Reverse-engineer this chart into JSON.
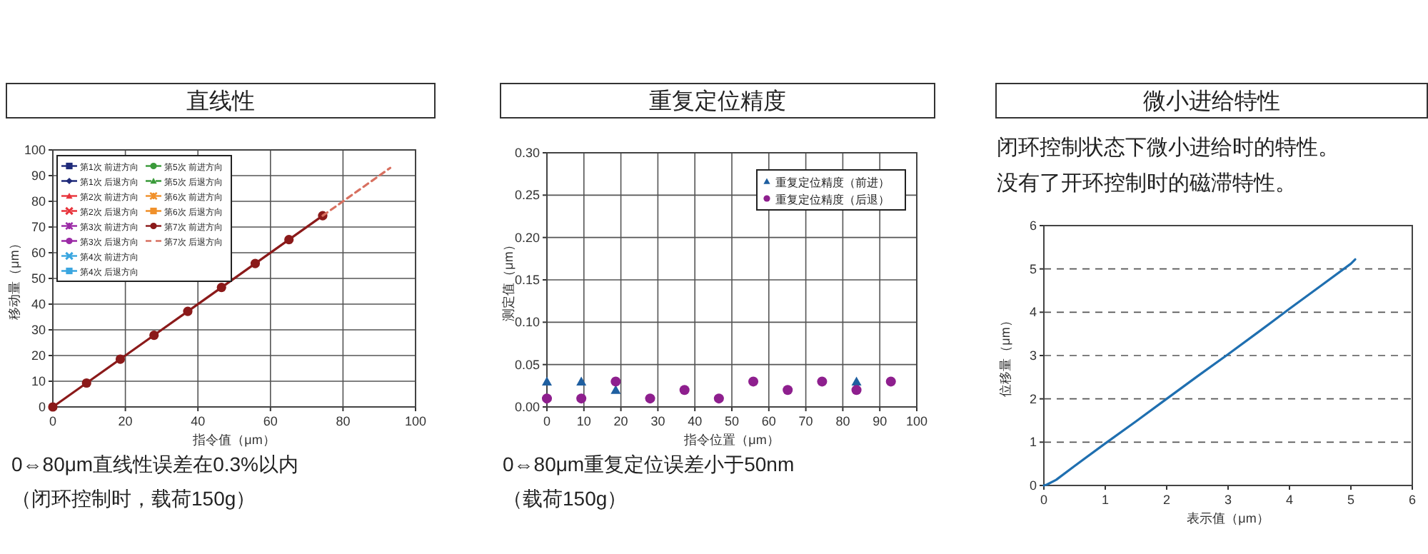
{
  "chart_data": [
    {
      "type": "line",
      "title": "直线性",
      "xlabel": "指令值（μm）",
      "ylabel": "移动量（μm）",
      "xlim": [
        0,
        100
      ],
      "ylim": [
        0,
        100
      ],
      "xticks": [
        0,
        20,
        40,
        60,
        80,
        100
      ],
      "yticks": [
        0,
        10,
        20,
        30,
        40,
        50,
        60,
        70,
        80,
        90,
        100
      ],
      "grid": true,
      "legend": "top left",
      "series": [
        {
          "name": "第1次 前进方向",
          "color": "#1f2a7a",
          "marker": "square",
          "line_style": "solid"
        },
        {
          "name": "第1次 后退方向",
          "color": "#1f2a7a",
          "marker": "diamond",
          "line_style": "dashed"
        },
        {
          "name": "第2次 前进方向",
          "color": "#e8343c",
          "marker": "triangle",
          "line_style": "solid"
        },
        {
          "name": "第2次 后退方向",
          "color": "#e8343c",
          "marker": "cross",
          "line_style": "dashed"
        },
        {
          "name": "第3次 前进方向",
          "color": "#9b2aa6",
          "marker": "star",
          "line_style": "solid"
        },
        {
          "name": "第3次 后退方向",
          "color": "#9b2aa6",
          "marker": "circle",
          "line_style": "dashed"
        },
        {
          "name": "第4次 前进方向",
          "color": "#3aa6e0",
          "marker": "cross",
          "line_style": "solid"
        },
        {
          "name": "第4次 后退方向",
          "color": "#3aa6e0",
          "marker": "square",
          "line_style": "dashed"
        },
        {
          "name": "第5次 前进方向",
          "color": "#3a9a3a",
          "marker": "circle",
          "line_style": "solid"
        },
        {
          "name": "第5次 后退方向",
          "color": "#3a9a3a",
          "marker": "triangle",
          "line_style": "dashed"
        },
        {
          "name": "第6次 前进方向",
          "color": "#f0902a",
          "marker": "star",
          "line_style": "solid"
        },
        {
          "name": "第6次 后退方向",
          "color": "#f0902a",
          "marker": "square",
          "line_style": "dashed"
        },
        {
          "name": "第7次 前进方向",
          "color": "#8b1a1a",
          "marker": "circle",
          "line_style": "solid",
          "x": [
            0,
            9.3,
            18.6,
            27.9,
            37.2,
            46.5,
            55.8,
            65.1,
            74.4
          ],
          "values": [
            0,
            9.3,
            18.6,
            27.9,
            37.2,
            46.5,
            55.8,
            65.1,
            74.4
          ]
        },
        {
          "name": "第7次 后退方向",
          "color": "#d87060",
          "marker": "none",
          "line_style": "dashed",
          "x": [
            74.4,
            80,
            93
          ],
          "values": [
            74.4,
            80,
            93
          ]
        }
      ],
      "annotations": [
        "0⇔80μm直线性误差在0.3%以内",
        "（闭环控制时，载荷150g）"
      ]
    },
    {
      "type": "scatter",
      "title": "重复定位精度",
      "xlabel": "指令位置（μm）",
      "ylabel": "测定值（μm）",
      "xlim": [
        0,
        100
      ],
      "ylim": [
        0,
        0.3
      ],
      "xticks": [
        0,
        10,
        20,
        30,
        40,
        50,
        60,
        70,
        80,
        90,
        100
      ],
      "yticks": [
        {
          "value": 0,
          "label": "0.00"
        },
        {
          "value": 0.05,
          "label": "0.05"
        },
        {
          "value": 0.1,
          "label": "0.10"
        },
        {
          "value": 0.15,
          "label": "0.15"
        },
        {
          "value": 0.2,
          "label": "0.20"
        },
        {
          "value": 0.25,
          "label": "0.25"
        },
        {
          "value": 0.3,
          "label": "0.30"
        }
      ],
      "grid": true,
      "legend": "top right",
      "series": [
        {
          "name": "重复定位精度（前进）",
          "color": "#1f5fa0",
          "marker": "triangle",
          "x": [
            0,
            9.3,
            18.6,
            83.7
          ],
          "values": [
            0.03,
            0.03,
            0.02,
            0.03
          ]
        },
        {
          "name": "重复定位精度（后退）",
          "color": "#8e1f8e",
          "marker": "circle",
          "x": [
            0,
            9.3,
            18.6,
            27.9,
            37.2,
            46.5,
            55.8,
            65.1,
            74.4,
            83.7,
            93
          ],
          "values": [
            0.01,
            0.01,
            0.03,
            0.01,
            0.02,
            0.01,
            0.03,
            0.02,
            0.03,
            0.02,
            0.03
          ]
        }
      ],
      "annotations": [
        "0⇔80μm重复定位误差小于50nm",
        "（载荷150g）"
      ]
    },
    {
      "type": "line",
      "title": "微小进给特性",
      "annotations": [
        "闭环控制状态下微小进给时的特性。",
        "没有了开环控制时的磁滞特性。"
      ],
      "xlabel": "表示值（μm）",
      "ylabel": "位移量（μm）",
      "xlim": [
        0,
        6
      ],
      "ylim": [
        0,
        6
      ],
      "xticks": [
        0,
        1,
        2,
        3,
        4,
        5,
        6
      ],
      "yticks": [
        0,
        1,
        2,
        3,
        4,
        5,
        6
      ],
      "grid": "y",
      "series": [
        {
          "color": "#1f6fb0",
          "marker": "none",
          "line_style": "solid",
          "x": [
            0,
            0.05,
            0.2,
            0.5,
            1,
            1.5,
            2,
            2.5,
            3,
            3.5,
            4,
            4.5,
            5,
            5.07
          ],
          "values": [
            0,
            0.02,
            0.13,
            0.45,
            0.97,
            1.48,
            2,
            2.52,
            3.03,
            3.55,
            4.08,
            4.6,
            5.12,
            5.22
          ]
        }
      ]
    }
  ]
}
